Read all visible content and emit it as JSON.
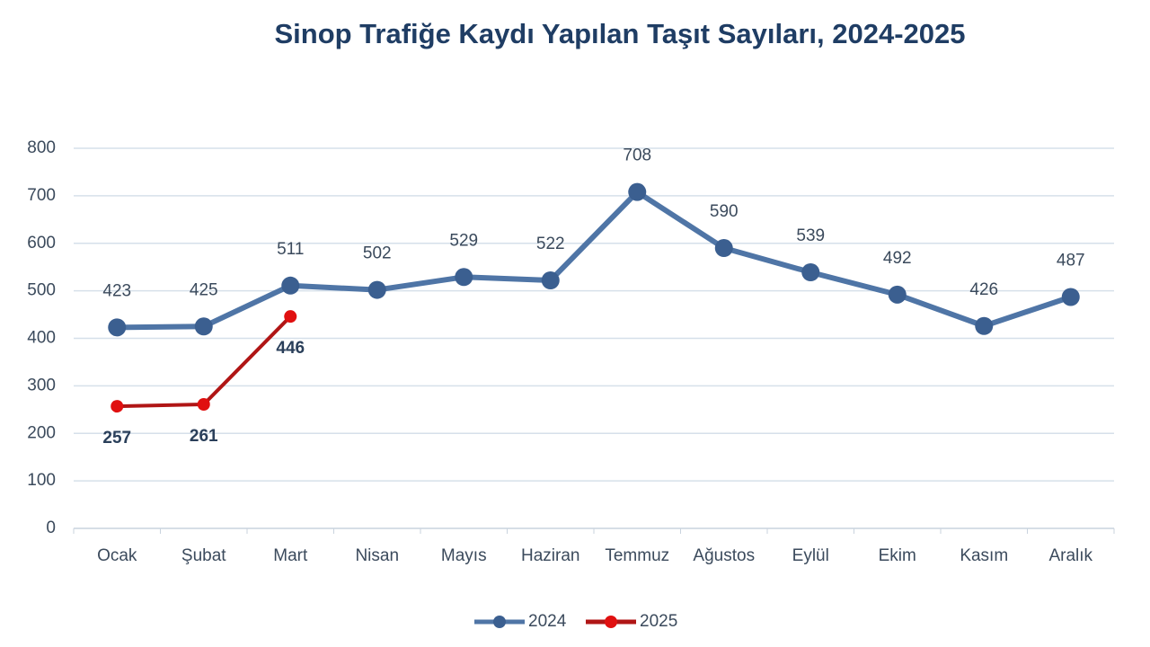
{
  "chart_data": {
    "type": "line",
    "title": "Sinop Trafiğe Kaydı Yapılan Taşıt Sayıları, 2024-2025",
    "categories": [
      "Ocak",
      "Şubat",
      "Mart",
      "Nisan",
      "Mayıs",
      "Haziran",
      "Temmuz",
      "Ağustos",
      "Eylül",
      "Ekim",
      "Kasım",
      "Aralık"
    ],
    "series": [
      {
        "name": "2024",
        "color": "#4f75a6",
        "marker_color": "#3b5f90",
        "values": [
          423,
          425,
          511,
          502,
          529,
          522,
          708,
          590,
          539,
          492,
          426,
          487
        ]
      },
      {
        "name": "2025",
        "color": "#b01515",
        "marker_color": "#e01010",
        "values": [
          257,
          261,
          446,
          null,
          null,
          null,
          null,
          null,
          null,
          null,
          null,
          null
        ]
      }
    ],
    "ylim": [
      0,
      800
    ],
    "yticks": [
      0,
      100,
      200,
      300,
      400,
      500,
      600,
      700,
      800
    ],
    "grid": true,
    "legend": "bottom"
  }
}
